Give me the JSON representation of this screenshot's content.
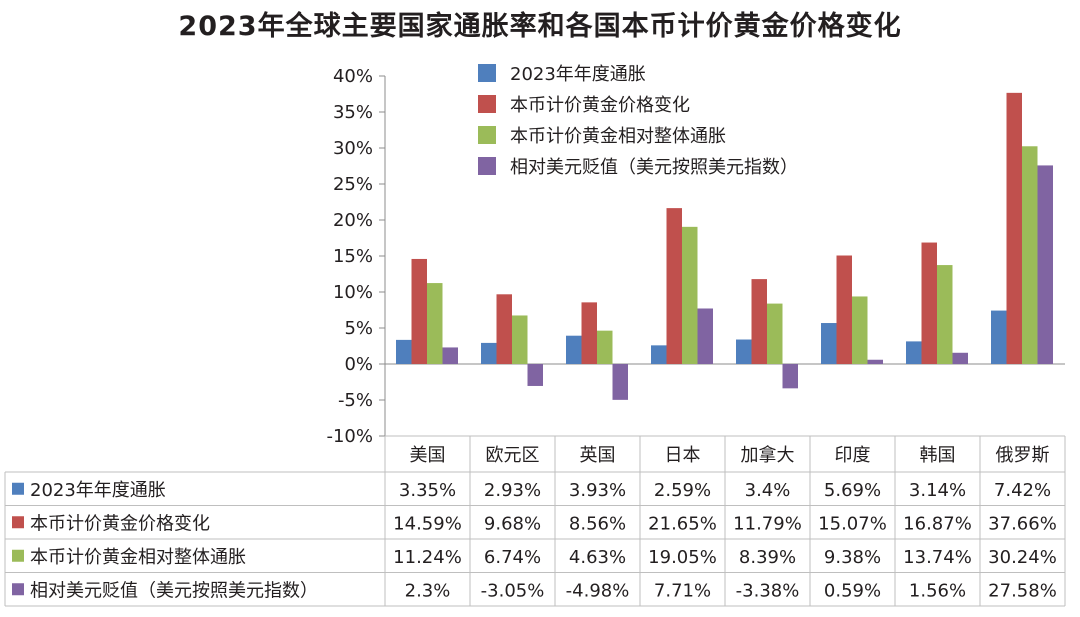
{
  "chart_data": {
    "type": "bar",
    "title": "2023年全球主要国家通胀率和各国本币计价黄金价格变化",
    "categories": [
      "美国",
      "欧元区",
      "英国",
      "日本",
      "加拿大",
      "印度",
      "韩国",
      "俄罗斯"
    ],
    "ylim": [
      -10,
      40
    ],
    "yticks": [
      40,
      35,
      30,
      25,
      20,
      15,
      10,
      5,
      0,
      -5,
      -10
    ],
    "ytick_labels": [
      "40%",
      "35%",
      "30%",
      "25%",
      "20%",
      "15%",
      "10%",
      "5%",
      "0%",
      "-5%",
      "-10%"
    ],
    "grid": false,
    "legend_position": "top-center",
    "series": [
      {
        "name": "2023年年度通胀",
        "color": "#4f7fbd",
        "values": [
          3.35,
          2.93,
          3.93,
          2.59,
          3.4,
          5.69,
          3.14,
          7.42
        ],
        "labels": [
          "3.35%",
          "2.93%",
          "3.93%",
          "2.59%",
          "3.4%",
          "5.69%",
          "3.14%",
          "7.42%"
        ]
      },
      {
        "name": "本币计价黄金价格变化",
        "color": "#c0504d",
        "values": [
          14.59,
          9.68,
          8.56,
          21.65,
          11.79,
          15.07,
          16.87,
          37.66
        ],
        "labels": [
          "14.59%",
          "9.68%",
          "8.56%",
          "21.65%",
          "11.79%",
          "15.07%",
          "16.87%",
          "37.66%"
        ]
      },
      {
        "name": "本币计价黄金相对整体通胀",
        "color": "#9bbb59",
        "values": [
          11.24,
          6.74,
          4.63,
          19.05,
          8.39,
          9.38,
          13.74,
          30.24
        ],
        "labels": [
          "11.24%",
          "6.74%",
          "4.63%",
          "19.05%",
          "8.39%",
          "9.38%",
          "13.74%",
          "30.24%"
        ]
      },
      {
        "name": "相对美元贬值（美元按照美元指数）",
        "color": "#8064a2",
        "values": [
          2.3,
          -3.05,
          -4.98,
          7.71,
          -3.38,
          0.59,
          1.56,
          27.58
        ],
        "labels": [
          "2.3%",
          "-3.05%",
          "-4.98%",
          "7.71%",
          "-3.38%",
          "0.59%",
          "1.56%",
          "27.58%"
        ]
      }
    ]
  }
}
